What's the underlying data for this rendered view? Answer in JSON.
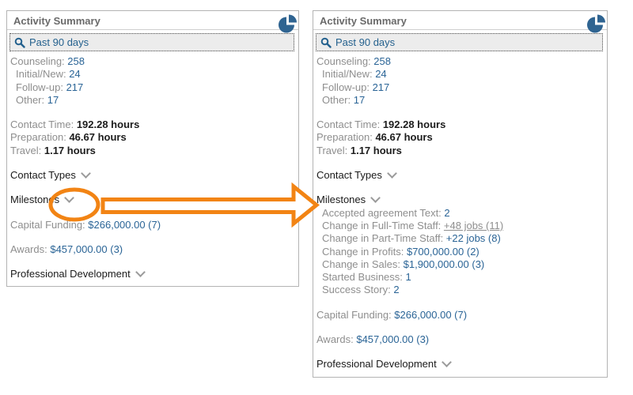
{
  "colors": {
    "value_blue": "#2a6496",
    "label_gray": "#8e8e8e",
    "annotation_orange": "#f28414",
    "pie_icon_blue": "#2f6491"
  },
  "icons": {
    "header_icon": "pie-chart-icon",
    "search_icon": "search-icon",
    "section_icon": "chevron-down-icon"
  },
  "panels": [
    {
      "title": "Activity Summary",
      "search": "Past 90 days",
      "rows": [
        {
          "parts": [
            {
              "t": "Counseling: ",
              "s": "label"
            },
            {
              "t": "258",
              "s": "value"
            }
          ]
        },
        {
          "indent": 1,
          "parts": [
            {
              "t": "Initial/New: ",
              "s": "label"
            },
            {
              "t": "24",
              "s": "value"
            }
          ]
        },
        {
          "indent": 1,
          "parts": [
            {
              "t": "Follow-up: ",
              "s": "label"
            },
            {
              "t": "217",
              "s": "value"
            }
          ]
        },
        {
          "indent": 1,
          "parts": [
            {
              "t": "Other: ",
              "s": "label"
            },
            {
              "t": "17",
              "s": "value"
            }
          ]
        },
        {
          "gap": 1,
          "parts": [
            {
              "t": "Contact Time: ",
              "s": "label"
            },
            {
              "t": "192.28 hours",
              "s": "bold"
            }
          ]
        },
        {
          "parts": [
            {
              "t": "Preparation: ",
              "s": "label"
            },
            {
              "t": "46.67 hours",
              "s": "bold"
            }
          ]
        },
        {
          "parts": [
            {
              "t": "Travel: ",
              "s": "label"
            },
            {
              "t": "1.17 hours",
              "s": "bold"
            }
          ]
        },
        {
          "gap": 1,
          "name": "section-contact-types",
          "chevron": 1,
          "parts": [
            {
              "t": "Contact Types",
              "s": "section"
            }
          ]
        },
        {
          "gap": 1,
          "name": "section-milestones",
          "chevron": 1,
          "parts": [
            {
              "t": "Milestones",
              "s": "section"
            }
          ]
        },
        {
          "gap": 1,
          "parts": [
            {
              "t": "Capital Funding: ",
              "s": "label"
            },
            {
              "t": "$266,000.00 (7)",
              "s": "value"
            }
          ]
        },
        {
          "gap": 1,
          "parts": [
            {
              "t": "Awards: ",
              "s": "label"
            },
            {
              "t": "$457,000.00 (3)",
              "s": "value"
            }
          ]
        },
        {
          "gap": 1,
          "name": "section-professional-development",
          "chevron": 1,
          "parts": [
            {
              "t": "Professional Development",
              "s": "section"
            }
          ]
        }
      ]
    },
    {
      "title": "Activity Summary",
      "search": "Past 90 days",
      "rows": [
        {
          "parts": [
            {
              "t": "Counseling: ",
              "s": "label"
            },
            {
              "t": "258",
              "s": "value"
            }
          ]
        },
        {
          "indent": 1,
          "parts": [
            {
              "t": "Initial/New: ",
              "s": "label"
            },
            {
              "t": "24",
              "s": "value"
            }
          ]
        },
        {
          "indent": 1,
          "parts": [
            {
              "t": "Follow-up: ",
              "s": "label"
            },
            {
              "t": "217",
              "s": "value"
            }
          ]
        },
        {
          "indent": 1,
          "parts": [
            {
              "t": "Other: ",
              "s": "label"
            },
            {
              "t": "17",
              "s": "value"
            }
          ]
        },
        {
          "gap": 1,
          "parts": [
            {
              "t": "Contact Time: ",
              "s": "label"
            },
            {
              "t": "192.28 hours",
              "s": "bold"
            }
          ]
        },
        {
          "parts": [
            {
              "t": "Preparation: ",
              "s": "label"
            },
            {
              "t": "46.67 hours",
              "s": "bold"
            }
          ]
        },
        {
          "parts": [
            {
              "t": "Travel: ",
              "s": "label"
            },
            {
              "t": "1.17 hours",
              "s": "bold"
            }
          ]
        },
        {
          "gap": 1,
          "name": "section-contact-types",
          "chevron": 1,
          "parts": [
            {
              "t": "Contact Types",
              "s": "section"
            }
          ]
        },
        {
          "gap": 1,
          "name": "section-milestones",
          "chevron": 1,
          "parts": [
            {
              "t": "Milestones",
              "s": "section"
            }
          ]
        },
        {
          "indent": 1,
          "parts": [
            {
              "t": "Accepted agreement Text: ",
              "s": "label"
            },
            {
              "t": "2",
              "s": "value"
            }
          ]
        },
        {
          "indent": 1,
          "parts": [
            {
              "t": "Change in Full-Time Staff: ",
              "s": "label"
            },
            {
              "t": "+48 jobs (11)",
              "s": "grayline"
            }
          ]
        },
        {
          "indent": 1,
          "parts": [
            {
              "t": "Change in Part-Time Staff: ",
              "s": "label"
            },
            {
              "t": "+22 jobs (8)",
              "s": "value"
            }
          ]
        },
        {
          "indent": 1,
          "parts": [
            {
              "t": "Change in Profits: ",
              "s": "label"
            },
            {
              "t": "$700,000.00 (2)",
              "s": "value"
            }
          ]
        },
        {
          "indent": 1,
          "parts": [
            {
              "t": "Change in Sales: ",
              "s": "label"
            },
            {
              "t": "$1,900,000.00 (3)",
              "s": "value"
            }
          ]
        },
        {
          "indent": 1,
          "parts": [
            {
              "t": "Started Business: ",
              "s": "label"
            },
            {
              "t": "1",
              "s": "value"
            }
          ]
        },
        {
          "indent": 1,
          "parts": [
            {
              "t": "Success Story: ",
              "s": "label"
            },
            {
              "t": "2",
              "s": "value"
            }
          ]
        },
        {
          "gap": 1,
          "parts": [
            {
              "t": "Capital Funding: ",
              "s": "label"
            },
            {
              "t": "$266,000.00 (7)",
              "s": "value"
            }
          ]
        },
        {
          "gap": 1,
          "parts": [
            {
              "t": "Awards: ",
              "s": "label"
            },
            {
              "t": "$457,000.00 (3)",
              "s": "value"
            }
          ]
        },
        {
          "gap": 1,
          "name": "section-professional-development",
          "chevron": 1,
          "parts": [
            {
              "t": "Professional Development",
              "s": "section"
            }
          ]
        }
      ]
    }
  ]
}
